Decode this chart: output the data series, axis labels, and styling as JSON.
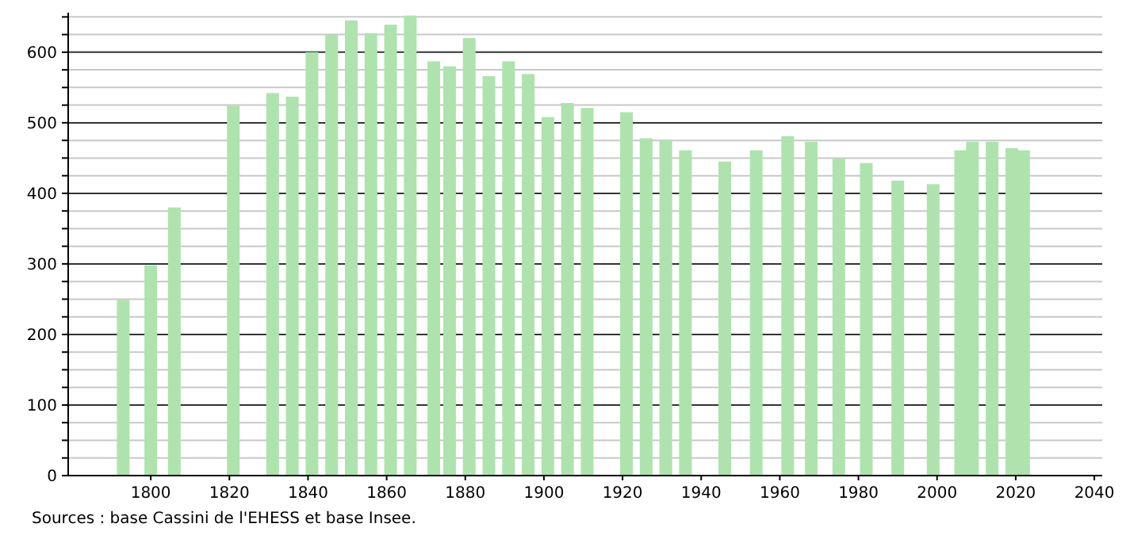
{
  "chart_data": {
    "type": "bar",
    "x": [
      1793,
      1800,
      1806,
      1821,
      1831,
      1836,
      1841,
      1846,
      1851,
      1856,
      1861,
      1866,
      1872,
      1876,
      1881,
      1886,
      1891,
      1896,
      1901,
      1906,
      1911,
      1921,
      1926,
      1931,
      1936,
      1946,
      1954,
      1962,
      1968,
      1975,
      1982,
      1990,
      1999,
      2006,
      2009,
      2014,
      2019,
      2022
    ],
    "values": [
      249,
      298,
      380,
      524,
      542,
      537,
      600,
      625,
      645,
      627,
      639,
      652,
      587,
      580,
      620,
      566,
      587,
      569,
      508,
      528,
      521,
      515,
      478,
      476,
      461,
      445,
      461,
      481,
      473,
      449,
      443,
      418,
      413,
      461,
      473,
      473,
      464,
      461
    ],
    "color": "#aee3ae",
    "xlim": [
      1779,
      2042
    ],
    "xticks": [
      1800,
      1820,
      1840,
      1860,
      1880,
      1900,
      1920,
      1940,
      1960,
      1980,
      2000,
      2020,
      2040
    ],
    "ylim": [
      0,
      656
    ],
    "yticks": [
      0,
      {
        "value": 25,
        "label": null
      },
      {
        "value": 50,
        "label": null
      },
      {
        "value": 75,
        "label": null
      },
      100,
      {
        "value": 125,
        "label": null
      },
      {
        "value": 150,
        "label": null
      },
      {
        "value": 175,
        "label": null
      },
      200,
      {
        "value": 225,
        "label": null
      },
      {
        "value": 250,
        "label": null
      },
      {
        "value": 275,
        "label": null
      },
      300,
      {
        "value": 325,
        "label": null
      },
      {
        "value": 350,
        "label": null
      },
      {
        "value": 375,
        "label": null
      },
      400,
      {
        "value": 425,
        "label": null
      },
      {
        "value": 450,
        "label": null
      },
      {
        "value": 475,
        "label": null
      },
      500,
      {
        "value": 525,
        "label": null
      },
      {
        "value": 550,
        "label": null
      },
      {
        "value": 575,
        "label": null
      },
      600,
      {
        "value": 625,
        "label": null
      },
      {
        "value": 650,
        "label": null
      }
    ],
    "grid": "y",
    "annotations": [
      "Sources : base Cassini de l'EHESS et base Insee."
    ]
  }
}
